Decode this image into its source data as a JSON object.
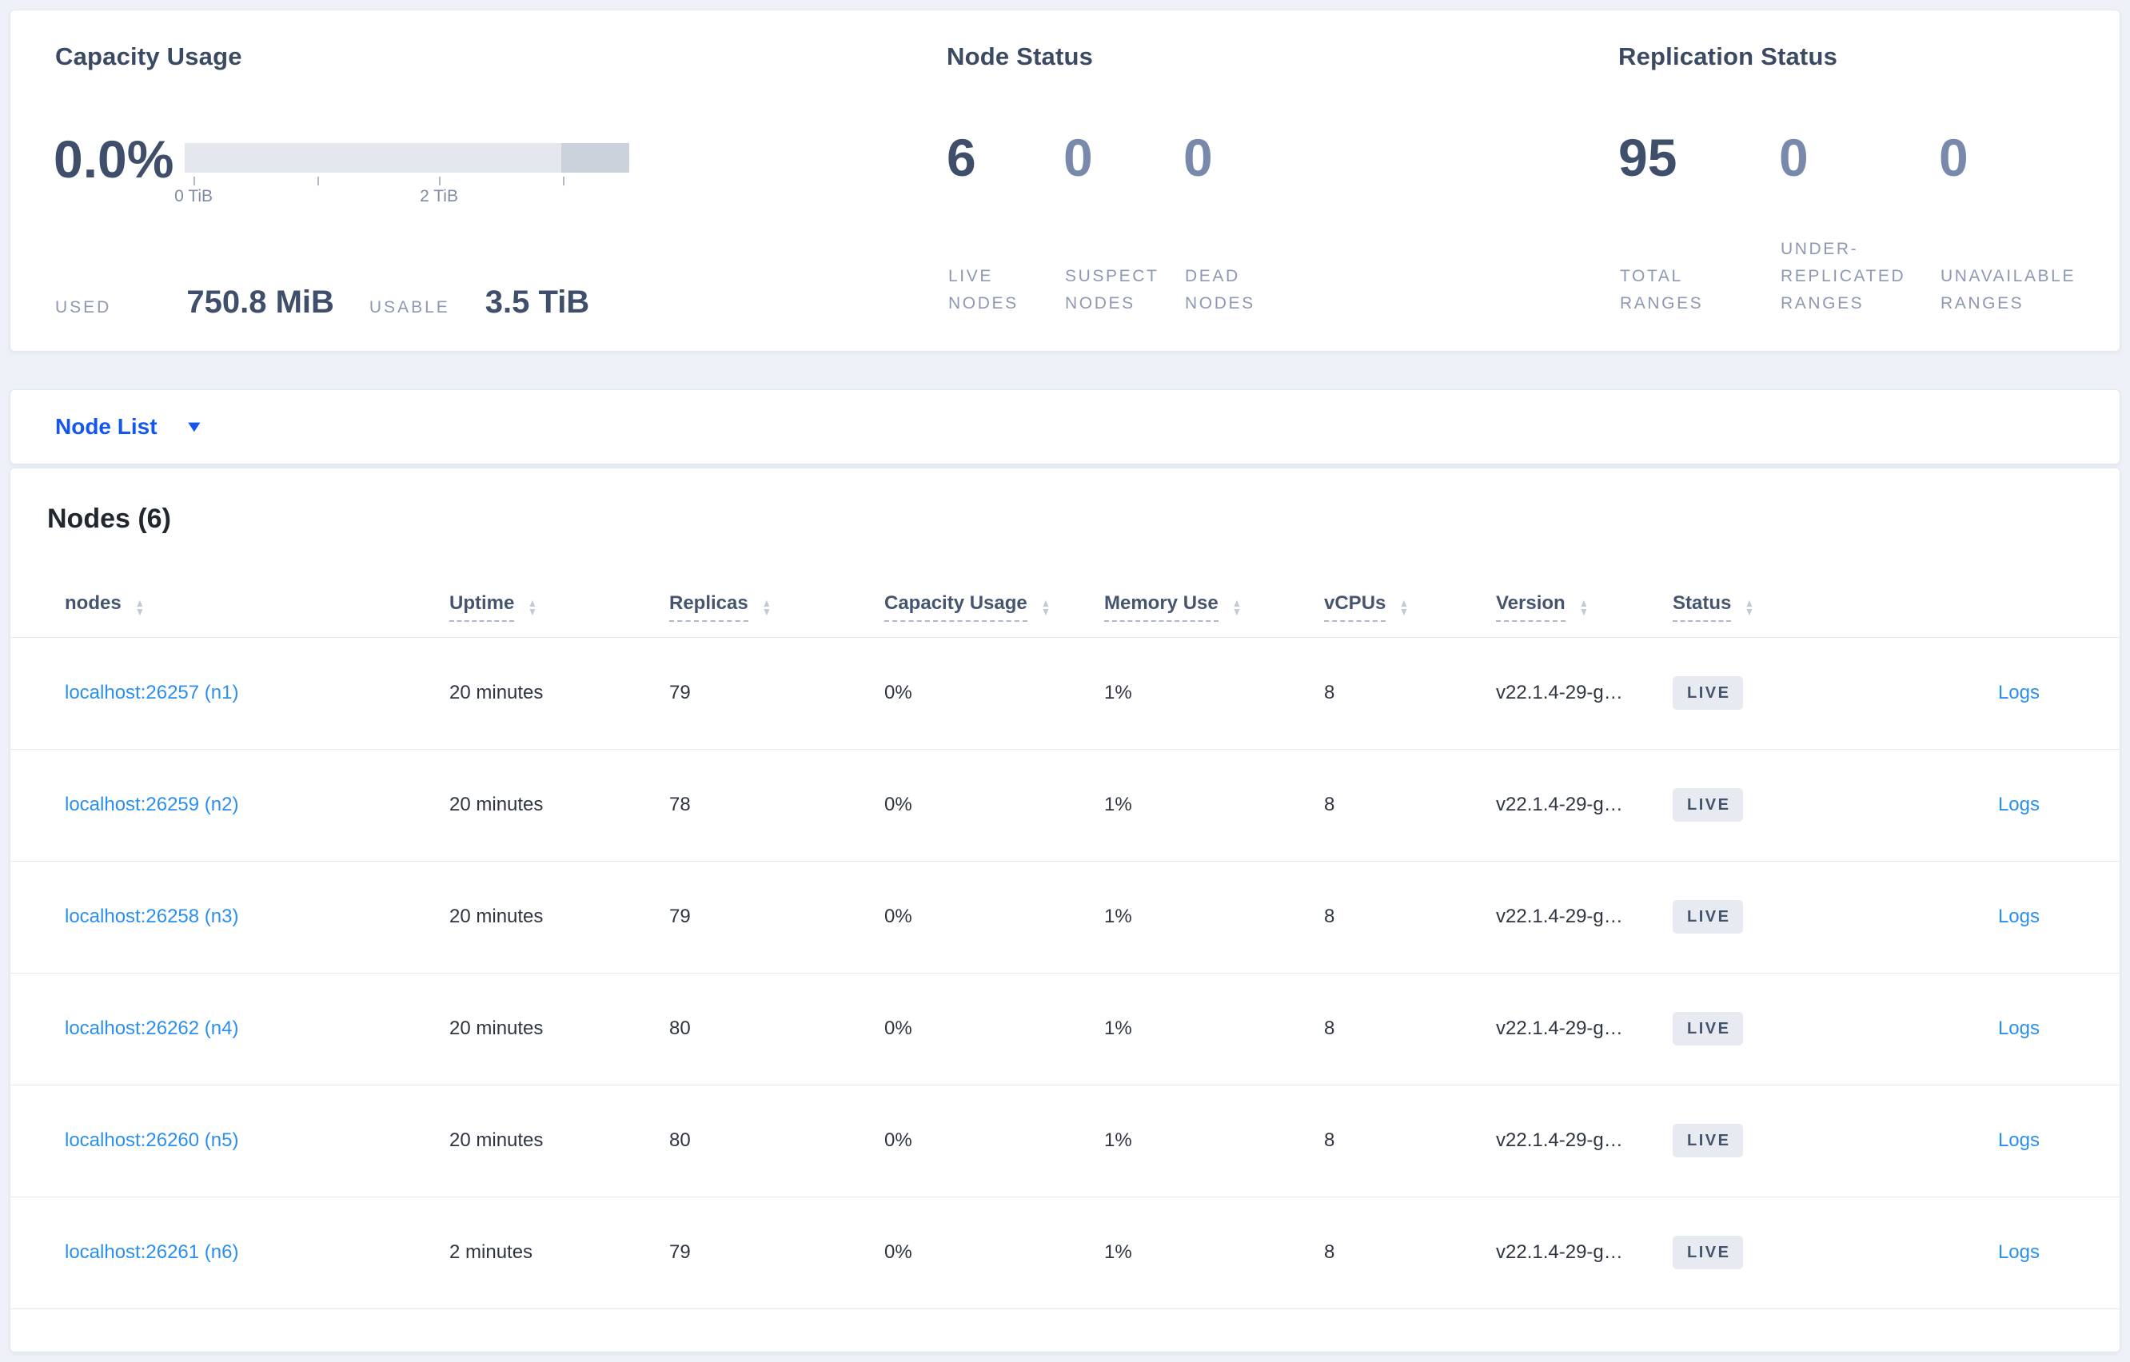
{
  "colors": {
    "page_bg": "#edf0f6",
    "link_blue": "#2b8ff0",
    "dropdown_blue": "#1356f0",
    "bar_light": "#e4e7ed",
    "bar_dark": "#ccd2dc",
    "badge_bg": "#e7eaf1",
    "badge_text": "#44536d"
  },
  "summary": {
    "capacity": {
      "title": "Capacity Usage",
      "percent": "0.0%",
      "tick_labels": {
        "first": "0 TiB",
        "third": "2 TiB"
      },
      "used_label": "USED",
      "used_value": "750.8 MiB",
      "usable_label": "USABLE",
      "usable_value": "3.5 TiB"
    },
    "node_status": {
      "title": "Node Status",
      "stats": [
        {
          "value": "6",
          "label": "LIVE NODES"
        },
        {
          "value": "0",
          "label": "SUSPECT NODES"
        },
        {
          "value": "0",
          "label": "DEAD NODES"
        }
      ]
    },
    "replication": {
      "title": "Replication Status",
      "stats": [
        {
          "value": "95",
          "label": "TOTAL RANGES"
        },
        {
          "value": "0",
          "label": "UNDER-REPLICATED RANGES"
        },
        {
          "value": "0",
          "label": "UNAVAILABLE RANGES"
        }
      ]
    }
  },
  "node_list": {
    "label": "Node List",
    "caret_icon": "▼"
  },
  "nodes_section": {
    "title": "Nodes (6)",
    "columns": [
      {
        "label": "nodes"
      },
      {
        "label": "Uptime"
      },
      {
        "label": "Replicas"
      },
      {
        "label": "Capacity Usage"
      },
      {
        "label": "Memory Use"
      },
      {
        "label": "vCPUs"
      },
      {
        "label": "Version"
      },
      {
        "label": "Status"
      }
    ],
    "sort_icon_up": "▲",
    "sort_icon_down": "▼",
    "rows": [
      {
        "address": "localhost:26257 (n1)",
        "uptime": "20 minutes",
        "replicas": "79",
        "capacity": "0%",
        "memory": "1%",
        "vcpus": "8",
        "version": "v22.1.4-29-g…",
        "status": "LIVE",
        "logs": "Logs"
      },
      {
        "address": "localhost:26259 (n2)",
        "uptime": "20 minutes",
        "replicas": "78",
        "capacity": "0%",
        "memory": "1%",
        "vcpus": "8",
        "version": "v22.1.4-29-g…",
        "status": "LIVE",
        "logs": "Logs"
      },
      {
        "address": "localhost:26258 (n3)",
        "uptime": "20 minutes",
        "replicas": "79",
        "capacity": "0%",
        "memory": "1%",
        "vcpus": "8",
        "version": "v22.1.4-29-g…",
        "status": "LIVE",
        "logs": "Logs"
      },
      {
        "address": "localhost:26262 (n4)",
        "uptime": "20 minutes",
        "replicas": "80",
        "capacity": "0%",
        "memory": "1%",
        "vcpus": "8",
        "version": "v22.1.4-29-g…",
        "status": "LIVE",
        "logs": "Logs"
      },
      {
        "address": "localhost:26260 (n5)",
        "uptime": "20 minutes",
        "replicas": "80",
        "capacity": "0%",
        "memory": "1%",
        "vcpus": "8",
        "version": "v22.1.4-29-g…",
        "status": "LIVE",
        "logs": "Logs"
      },
      {
        "address": "localhost:26261 (n6)",
        "uptime": "2 minutes",
        "replicas": "79",
        "capacity": "0%",
        "memory": "1%",
        "vcpus": "8",
        "version": "v22.1.4-29-g…",
        "status": "LIVE",
        "logs": "Logs"
      }
    ]
  }
}
